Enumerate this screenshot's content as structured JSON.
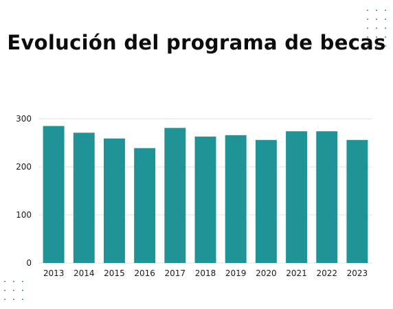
{
  "chart_data": {
    "type": "bar",
    "title": "Evolución del programa de becas",
    "categories": [
      "2013",
      "2014",
      "2015",
      "2016",
      "2017",
      "2018",
      "2019",
      "2020",
      "2021",
      "2022",
      "2023"
    ],
    "values": [
      285,
      271,
      259,
      239,
      281,
      263,
      266,
      256,
      274,
      274,
      256
    ],
    "xlabel": "",
    "ylabel": "",
    "ylim": [
      0,
      300
    ],
    "yticks": [
      0,
      100,
      200,
      300
    ],
    "grid": true,
    "bar_color": "#1f9396",
    "grid_color": "#e2e2e2",
    "decoration_color": "#1f9396"
  }
}
